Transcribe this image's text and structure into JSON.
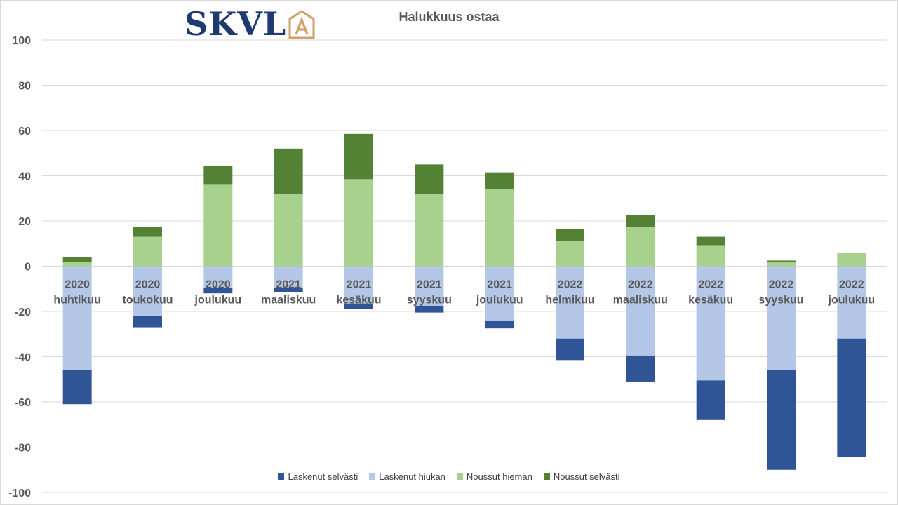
{
  "logo": {
    "text": "SKVL",
    "accent": "#c9a36a",
    "brand": "#1f3a6e"
  },
  "chart_data": {
    "type": "bar",
    "stacked": true,
    "title": "Halukkuus ostaa",
    "xlabel": "",
    "ylabel": "",
    "ylim": [
      -100,
      100
    ],
    "yticks": [
      100,
      80,
      60,
      40,
      20,
      0,
      -20,
      -40,
      -60,
      -80,
      -100
    ],
    "grid": true,
    "legend_position": "bottom",
    "categories": [
      [
        "2020",
        "huhtikuu"
      ],
      [
        "2020",
        "toukokuu"
      ],
      [
        "2020",
        "joulukuu"
      ],
      [
        "2021",
        "maaliskuu"
      ],
      [
        "2021",
        "kesäkuu"
      ],
      [
        "2021",
        "syyskuu"
      ],
      [
        "2021",
        "joulukuu"
      ],
      [
        "2022",
        "helmikuu"
      ],
      [
        "2022",
        "maaliskuu"
      ],
      [
        "2022",
        "kesäkuu"
      ],
      [
        "2022",
        "syyskuu"
      ],
      [
        "2022",
        "joulukuu"
      ]
    ],
    "series": [
      {
        "name": "Laskenut selvästi",
        "color": "#2f5597",
        "values": [
          -15,
          -5,
          -2.5,
          -2,
          -2.5,
          -3,
          -3.5,
          -9.5,
          -11.5,
          -17.5,
          -44,
          -52.5
        ]
      },
      {
        "name": "Laskenut hiukan",
        "color": "#b4c7e7",
        "values": [
          -46,
          -22,
          -9.5,
          -9.5,
          -16.5,
          -17.5,
          -24,
          -32,
          -39.5,
          -50.5,
          -46,
          -32
        ]
      },
      {
        "name": "Noussut hieman",
        "color": "#a9d18e",
        "values": [
          2,
          13,
          36,
          32,
          38.5,
          32,
          34,
          11,
          17.5,
          9,
          2,
          6
        ]
      },
      {
        "name": "Noussut selvästi",
        "color": "#548235",
        "values": [
          2,
          4.5,
          8.5,
          20,
          20,
          13,
          7.5,
          5.5,
          5,
          4,
          0.5,
          0
        ]
      }
    ]
  }
}
